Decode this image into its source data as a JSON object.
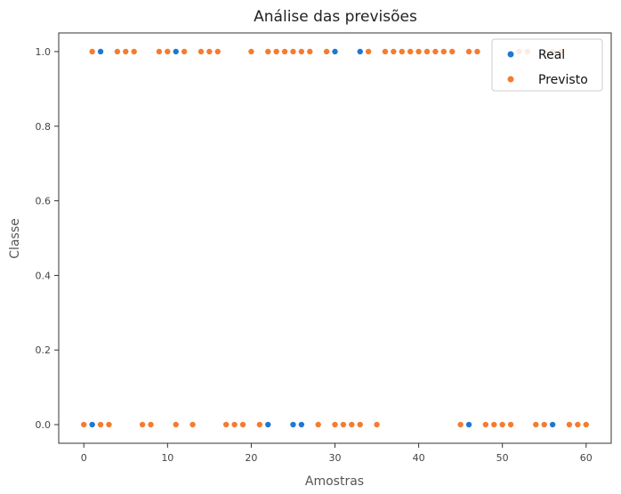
{
  "chart_data": {
    "type": "scatter",
    "title": "Análise das previsões",
    "xlabel": "Amostras",
    "ylabel": "Classe",
    "xlim": [
      -3,
      63
    ],
    "ylim": [
      -0.05,
      1.05
    ],
    "xticks": [
      0,
      10,
      20,
      30,
      40,
      50,
      60
    ],
    "yticks": [
      0.0,
      0.2,
      0.4,
      0.6,
      0.8,
      1.0
    ],
    "ytick_labels": [
      "0.0",
      "0.2",
      "0.4",
      "0.6",
      "0.8",
      "1.0"
    ],
    "grid": false,
    "legend_position": "top-right",
    "series": [
      {
        "name": "Real",
        "color": "#1f77d4",
        "x": [
          0,
          1,
          2,
          3,
          4,
          5,
          6,
          7,
          8,
          9,
          10,
          11,
          12,
          13,
          14,
          15,
          16,
          17,
          18,
          19,
          20,
          21,
          22,
          23,
          24,
          25,
          26,
          27,
          28,
          29,
          30,
          31,
          32,
          33,
          34,
          35,
          36,
          37,
          38,
          39,
          40,
          41,
          42,
          43,
          44,
          45,
          46,
          47,
          48,
          49,
          50,
          51,
          52,
          53,
          54,
          55,
          56,
          57,
          58,
          59,
          60
        ],
        "y": [
          0,
          0,
          1,
          0,
          1,
          1,
          1,
          0,
          0,
          1,
          1,
          1,
          1,
          0,
          1,
          1,
          1,
          0,
          0,
          0,
          1,
          0,
          0,
          1,
          1,
          0,
          0,
          1,
          0,
          1,
          1,
          0,
          0,
          1,
          1,
          0,
          1,
          1,
          1,
          1,
          1,
          1,
          1,
          1,
          1,
          0,
          0,
          1,
          0,
          0,
          0,
          0,
          1,
          1,
          0,
          0,
          0,
          1,
          0,
          0,
          0
        ]
      },
      {
        "name": "Previsto",
        "color": "#f47c30",
        "x": [
          0,
          1,
          2,
          3,
          4,
          5,
          6,
          7,
          8,
          9,
          10,
          11,
          12,
          13,
          14,
          15,
          16,
          17,
          18,
          19,
          20,
          21,
          22,
          23,
          24,
          25,
          26,
          27,
          28,
          29,
          30,
          31,
          32,
          33,
          34,
          35,
          36,
          37,
          38,
          39,
          40,
          41,
          42,
          43,
          44,
          45,
          46,
          47,
          48,
          49,
          50,
          51,
          52,
          53,
          54,
          55,
          56,
          57,
          58,
          59,
          60
        ],
        "y": [
          0,
          1,
          0,
          0,
          1,
          1,
          1,
          0,
          0,
          1,
          1,
          0,
          1,
          0,
          1,
          1,
          1,
          0,
          0,
          0,
          1,
          0,
          1,
          1,
          1,
          1,
          1,
          1,
          0,
          1,
          0,
          0,
          0,
          0,
          1,
          0,
          1,
          1,
          1,
          1,
          1,
          1,
          1,
          1,
          1,
          0,
          1,
          1,
          0,
          0,
          0,
          0,
          1,
          1,
          0,
          0,
          1,
          1,
          0,
          0,
          0
        ]
      }
    ]
  }
}
